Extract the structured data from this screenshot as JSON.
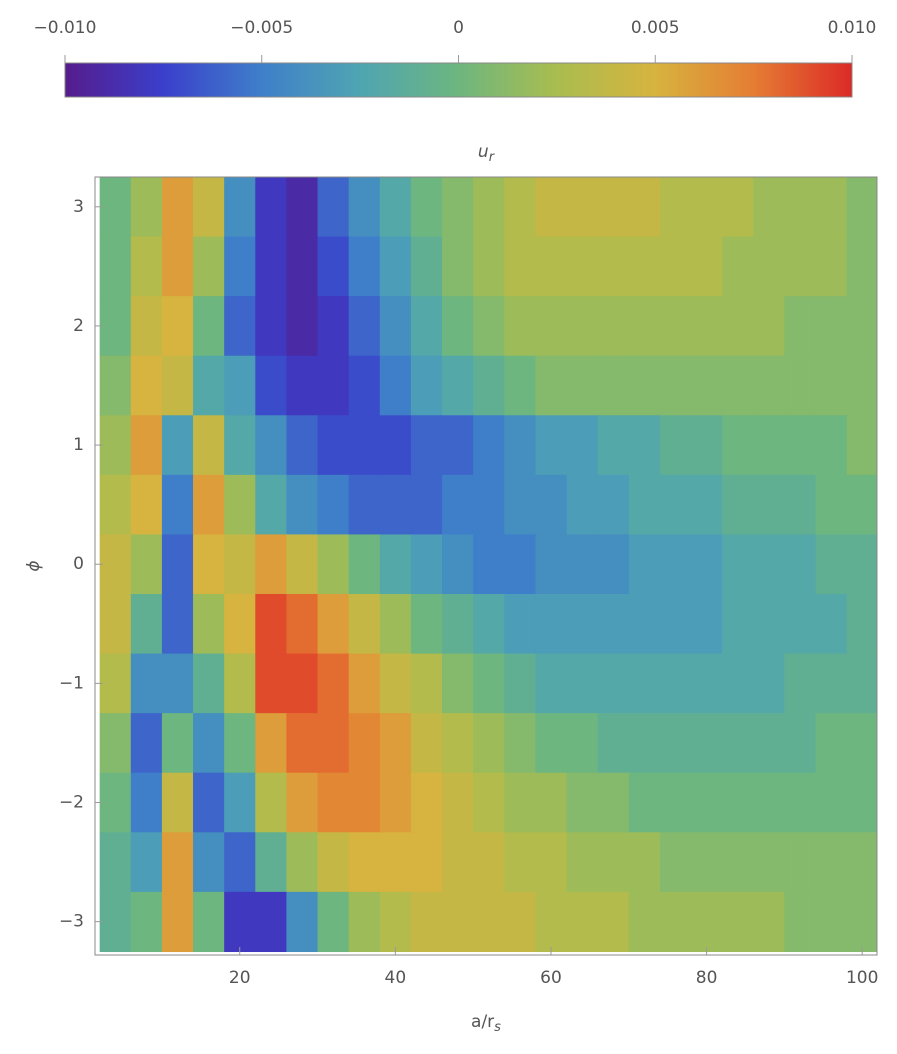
{
  "chart_data": {
    "type": "heatmap",
    "title": {
      "base": "u",
      "sub": "r"
    },
    "xlabel": {
      "base": "a/r",
      "sub": "s"
    },
    "ylabel": "ϕ",
    "x": [
      4,
      8,
      12,
      16,
      20,
      24,
      28,
      32,
      36,
      40,
      44,
      48,
      52,
      56,
      60,
      64,
      68,
      72,
      76,
      80,
      84,
      88,
      92,
      96,
      100
    ],
    "y": [
      3,
      2.5,
      2,
      1.5,
      1,
      0.5,
      0,
      -0.5,
      -1,
      -1.5,
      -2,
      -2.5,
      -3
    ],
    "z": [
      [
        0,
        0.002,
        0.006,
        0.004,
        -0.004,
        -0.008,
        -0.009,
        -0.006,
        -0.004,
        -0.002,
        0,
        0.001,
        0.002,
        0.003,
        0.004,
        0.004,
        0.004,
        0.004,
        0.003,
        0.003,
        0.003,
        0.002,
        0.002,
        0.002,
        0.001
      ],
      [
        0,
        0.003,
        0.006,
        0.002,
        -0.005,
        -0.008,
        -0.009,
        -0.007,
        -0.005,
        -0.003,
        -0.001,
        0.001,
        0.002,
        0.003,
        0.003,
        0.003,
        0.003,
        0.003,
        0.003,
        0.003,
        0.002,
        0.002,
        0.002,
        0.002,
        0.001
      ],
      [
        0,
        0.004,
        0.005,
        0,
        -0.006,
        -0.008,
        -0.009,
        -0.008,
        -0.006,
        -0.004,
        -0.002,
        0,
        0.001,
        0.002,
        0.002,
        0.002,
        0.002,
        0.002,
        0.002,
        0.002,
        0.002,
        0.002,
        0.001,
        0.001,
        0.001
      ],
      [
        0.001,
        0.005,
        0.004,
        -0.002,
        -0.003,
        -0.007,
        -0.008,
        -0.008,
        -0.007,
        -0.005,
        -0.003,
        -0.002,
        -0.001,
        0,
        0.001,
        0.001,
        0.001,
        0.001,
        0.001,
        0.001,
        0.001,
        0.001,
        0.001,
        0.001,
        0.001
      ],
      [
        0.002,
        0.006,
        -0.003,
        0.004,
        -0.002,
        -0.004,
        -0.006,
        -0.007,
        -0.007,
        -0.007,
        -0.006,
        -0.006,
        -0.005,
        -0.004,
        -0.003,
        -0.003,
        -0.002,
        -0.002,
        -0.001,
        -0.001,
        0,
        0,
        0,
        0,
        0.001
      ],
      [
        0.003,
        0.005,
        -0.005,
        0.006,
        0.002,
        -0.002,
        -0.004,
        -0.005,
        -0.006,
        -0.006,
        -0.006,
        -0.005,
        -0.005,
        -0.004,
        -0.004,
        -0.003,
        -0.003,
        -0.002,
        -0.002,
        -0.002,
        -0.001,
        -0.001,
        -0.001,
        0,
        0
      ],
      [
        0.004,
        0.002,
        -0.006,
        0.005,
        0.004,
        0.006,
        0.004,
        0.002,
        0,
        -0.002,
        -0.003,
        -0.004,
        -0.005,
        -0.005,
        -0.004,
        -0.004,
        -0.004,
        -0.003,
        -0.003,
        -0.003,
        -0.002,
        -0.002,
        -0.002,
        -0.001,
        -0.001
      ],
      [
        0.004,
        -0.001,
        -0.006,
        0.002,
        0.005,
        0.009,
        0.008,
        0.006,
        0.004,
        0.002,
        0,
        -0.001,
        -0.002,
        -0.003,
        -0.003,
        -0.003,
        -0.003,
        -0.003,
        -0.003,
        -0.003,
        -0.002,
        -0.002,
        -0.002,
        -0.002,
        -0.001
      ],
      [
        0.003,
        -0.004,
        -0.004,
        -0.001,
        0.003,
        0.009,
        0.009,
        0.008,
        0.006,
        0.004,
        0.003,
        0.001,
        0,
        -0.001,
        -0.002,
        -0.002,
        -0.002,
        -0.002,
        -0.002,
        -0.002,
        -0.002,
        -0.002,
        -0.001,
        -0.001,
        -0.001
      ],
      [
        0.001,
        -0.006,
        0,
        -0.004,
        0,
        0.006,
        0.008,
        0.008,
        0.007,
        0.006,
        0.004,
        0.003,
        0.002,
        0.001,
        0,
        0,
        -0.001,
        -0.001,
        -0.001,
        -0.001,
        -0.001,
        -0.001,
        -0.001,
        0,
        0
      ],
      [
        0,
        -0.005,
        0.004,
        -0.006,
        -0.003,
        0.003,
        0.006,
        0.007,
        0.007,
        0.006,
        0.005,
        0.004,
        0.003,
        0.002,
        0.002,
        0.001,
        0.001,
        0,
        0,
        0,
        0,
        0,
        0,
        0,
        0
      ],
      [
        -0.001,
        -0.003,
        0.006,
        -0.004,
        -0.006,
        -0.001,
        0.002,
        0.004,
        0.005,
        0.005,
        0.005,
        0.004,
        0.004,
        0.003,
        0.003,
        0.002,
        0.002,
        0.002,
        0.001,
        0.001,
        0.001,
        0.001,
        0.001,
        0.001,
        0.001
      ],
      [
        -0.001,
        0,
        0.006,
        0,
        -0.008,
        -0.008,
        -0.004,
        0,
        0.002,
        0.003,
        0.004,
        0.004,
        0.004,
        0.004,
        0.003,
        0.003,
        0.003,
        0.002,
        0.002,
        0.002,
        0.002,
        0.002,
        0.001,
        0.001,
        0.001
      ]
    ],
    "xlim": [
      1.4,
      101.9
    ],
    "xticks": [
      20,
      40,
      60,
      80,
      100
    ],
    "ylim": [
      -3.28,
      3.25
    ],
    "yticks": [
      {
        "value": -3,
        "label": "−3"
      },
      {
        "value": -2,
        "label": "−2"
      },
      {
        "value": -1,
        "label": "−1"
      },
      0,
      1,
      2,
      3
    ],
    "zlim": [
      -0.01,
      0.01
    ],
    "zticks": [
      {
        "value": -0.01,
        "label": "−0.010"
      },
      {
        "value": -0.005,
        "label": "−0.005"
      },
      0,
      {
        "value": 0.005,
        "label": "0.005"
      },
      {
        "value": 0.01,
        "label": "0.010"
      }
    ],
    "colormap": [
      "#561c8c",
      "#3a3fcc",
      "#3f7fc9",
      "#4fa5b2",
      "#6db67f",
      "#a9bd4f",
      "#d7b33f",
      "#e57d33",
      "#dc2a27"
    ]
  }
}
